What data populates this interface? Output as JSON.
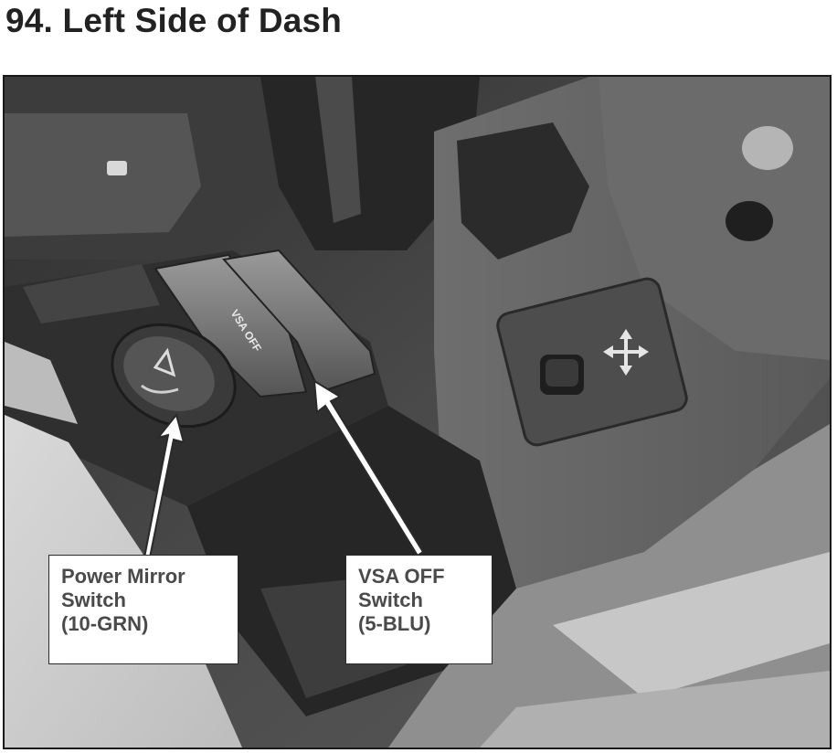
{
  "page": {
    "title": "94. Left Side of Dash"
  },
  "photo": {
    "subject": "",
    "button_text": "VSA OFF",
    "callouts": [
      {
        "lines": [
          "Power Mirror",
          "Switch",
          "(10-GRN)"
        ]
      },
      {
        "lines": [
          "VSA OFF",
          "Switch",
          "(5-BLU)"
        ]
      }
    ]
  },
  "colors": {
    "callout_border": "#2a2a2a",
    "callout_text": "#4a4a4a",
    "title_text": "#222222"
  }
}
